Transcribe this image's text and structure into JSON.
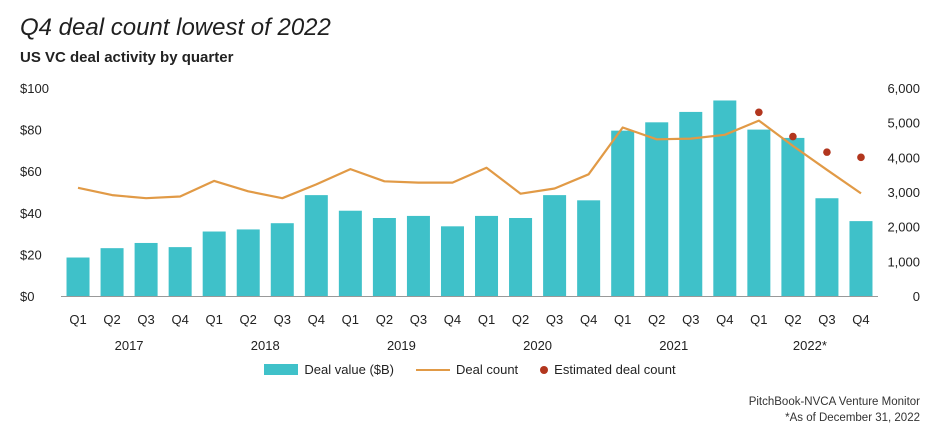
{
  "title": "Q4 deal count lowest of 2022",
  "subtitle": "US VC deal activity by quarter",
  "source": "PitchBook-NVCA Venture Monitor",
  "note": "*As of December 31, 2022",
  "colors": {
    "bar": "#3fc1c9",
    "line": "#e19a46",
    "dot": "#b2361e",
    "axis": "#999999"
  },
  "legend": {
    "bar": "Deal value ($B)",
    "line": "Deal count",
    "dot": "Estimated deal count"
  },
  "chart_data": {
    "type": "bar+line",
    "categories": [
      "Q1",
      "Q2",
      "Q3",
      "Q4",
      "Q1",
      "Q2",
      "Q3",
      "Q4",
      "Q1",
      "Q2",
      "Q3",
      "Q4",
      "Q1",
      "Q2",
      "Q3",
      "Q4",
      "Q1",
      "Q2",
      "Q3",
      "Q4",
      "Q1",
      "Q2",
      "Q3",
      "Q4"
    ],
    "years": [
      "2017",
      "2018",
      "2019",
      "2020",
      "2021",
      "2022*"
    ],
    "y_left": {
      "min": 0,
      "max": 100,
      "ticks": [
        "$0",
        "$20",
        "$40",
        "$60",
        "$80",
        "$100"
      ]
    },
    "y_right": {
      "min": 0,
      "max": 6000,
      "ticks": [
        "0",
        "1,000",
        "2,000",
        "3,000",
        "4,000",
        "5,000",
        "6,000"
      ]
    },
    "series": [
      {
        "name": "Deal value ($B)",
        "type": "bar",
        "axis": "left",
        "values": [
          18.5,
          23,
          25.5,
          23.5,
          31,
          32,
          35,
          48.5,
          41,
          37.5,
          38.5,
          33.5,
          38.5,
          37.5,
          48.5,
          46,
          79.5,
          83.5,
          88.5,
          94,
          80,
          76,
          47,
          36
        ]
      },
      {
        "name": "Deal count",
        "type": "line",
        "axis": "right",
        "values": [
          3120,
          2910,
          2820,
          2870,
          3320,
          3020,
          2820,
          3220,
          3660,
          3310,
          3270,
          3270,
          3700,
          2950,
          3100,
          3510,
          4860,
          4520,
          4540,
          4650,
          5060,
          4330,
          3640,
          2960
        ]
      },
      {
        "name": "Estimated deal count",
        "type": "scatter",
        "axis": "right",
        "x_indices": [
          20,
          21,
          22,
          23
        ],
        "values": [
          5300,
          4600,
          4150,
          4000
        ]
      }
    ]
  }
}
